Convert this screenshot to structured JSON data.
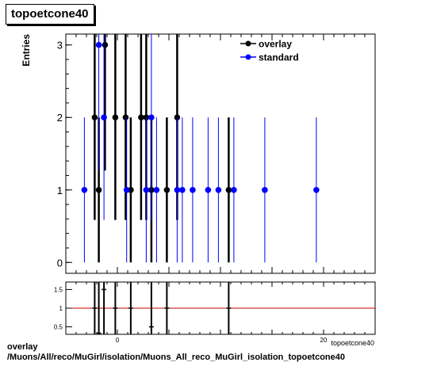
{
  "title": "topoetcone40",
  "caption": {
    "line1": "overlay",
    "line2": "/Muons/All/reco/MuGirl/isolation/Muons_All_reco_MuGirl_isolation_topoetcone40"
  },
  "colors": {
    "overlay": "#000000",
    "standard": "#0000ff",
    "ratio_line": "#cc0000",
    "frame": "#000000"
  },
  "chart_data": [
    {
      "type": "scatter",
      "title": "topoetcone40",
      "xlabel": "",
      "ylabel": "Entries",
      "xlim": [
        -5,
        25
      ],
      "ylim": [
        -0.15,
        3.15
      ],
      "yticks": [
        0,
        1,
        2,
        3
      ],
      "grid": false,
      "legend_position": "top-right",
      "series": [
        {
          "name": "overlay",
          "color": "#000000",
          "points": [
            {
              "x": -2.2,
              "y": 2
            },
            {
              "x": -1.8,
              "y": 1
            },
            {
              "x": -1.2,
              "y": 3
            },
            {
              "x": -0.2,
              "y": 2
            },
            {
              "x": 0.8,
              "y": 2
            },
            {
              "x": 1.3,
              "y": 1
            },
            {
              "x": 2.3,
              "y": 2
            },
            {
              "x": 2.8,
              "y": 2
            },
            {
              "x": 3.3,
              "y": 1
            },
            {
              "x": 4.8,
              "y": 1
            },
            {
              "x": 5.8,
              "y": 2
            },
            {
              "x": 10.8,
              "y": 1
            }
          ]
        },
        {
          "name": "standard",
          "color": "#0000ff",
          "points": [
            {
              "x": -3.2,
              "y": 1
            },
            {
              "x": -1.8,
              "y": 3
            },
            {
              "x": -1.3,
              "y": 2
            },
            {
              "x": 0.9,
              "y": 1
            },
            {
              "x": 2.8,
              "y": 1
            },
            {
              "x": 3.3,
              "y": 2
            },
            {
              "x": 3.8,
              "y": 1
            },
            {
              "x": 5.8,
              "y": 1
            },
            {
              "x": 6.3,
              "y": 1
            },
            {
              "x": 7.3,
              "y": 1
            },
            {
              "x": 8.8,
              "y": 1
            },
            {
              "x": 9.8,
              "y": 1
            },
            {
              "x": 11.3,
              "y": 1
            },
            {
              "x": 14.3,
              "y": 1
            },
            {
              "x": 19.3,
              "y": 1
            }
          ]
        }
      ]
    },
    {
      "type": "scatter",
      "title": "",
      "xlabel": "topoetcone40",
      "ylabel": "",
      "xlim": [
        -5,
        25
      ],
      "ylim": [
        0.3,
        1.7
      ],
      "xticks": [
        0,
        20
      ],
      "yticks": [
        0.5,
        1,
        1.5
      ],
      "reference_line": 1,
      "series": [
        {
          "name": "",
          "color": "#000000",
          "points": [
            {
              "x": -2.2,
              "y": 1
            },
            {
              "x": -1.8,
              "y": 0.33
            },
            {
              "x": -1.3,
              "y": 1.5
            },
            {
              "x": -0.2,
              "y": 1
            },
            {
              "x": 1.3,
              "y": 1
            },
            {
              "x": 3.3,
              "y": 0.5
            },
            {
              "x": 4.8,
              "y": 1
            },
            {
              "x": 10.8,
              "y": 1
            }
          ]
        }
      ]
    }
  ]
}
